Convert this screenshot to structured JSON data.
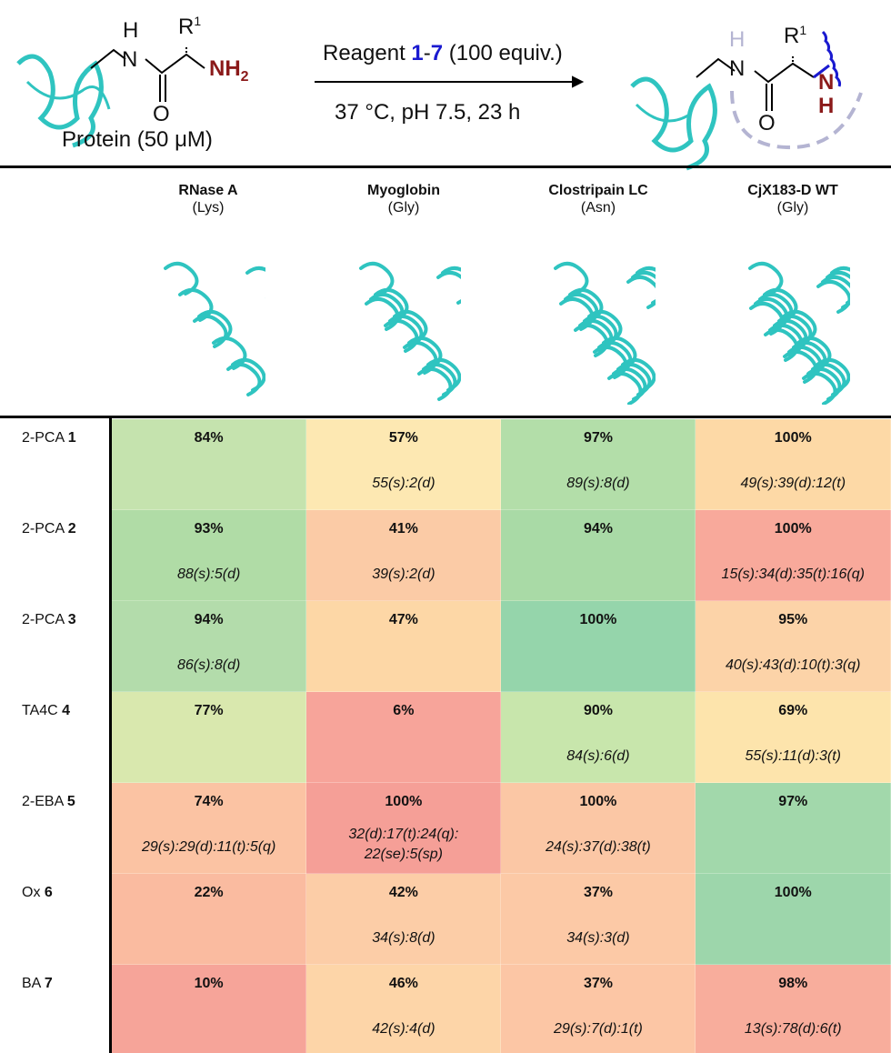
{
  "scheme": {
    "reactant_R": "R",
    "reactant_sup": "1",
    "reactant_H": "H",
    "reactant_N": "N",
    "reactant_O": "O",
    "amine": "NH",
    "amine_sub": "2",
    "protein_label": "Protein (50 μM)",
    "reagent_prefix": "Reagent ",
    "reagent_a": "1",
    "reagent_dash": "-",
    "reagent_b": "7",
    "reagent_suffix": " (100 equiv.)",
    "conditions": "37 °C, pH 7.5, 23 h",
    "product_NH_N": "N",
    "product_NH_H": "H",
    "colors": {
      "amine": "#8b1a1a",
      "reagent_number": "#1a1ad0",
      "protein": "#2fc4c0",
      "macrocycle_dash": "#b4b4d2",
      "reagent_bond": "#1a1ad0"
    }
  },
  "columns": [
    {
      "name": "RNase A",
      "residue": "(Lys)"
    },
    {
      "name": "Myoglobin",
      "residue": "(Gly)"
    },
    {
      "name": "Clostripain LC",
      "residue": "(Asn)"
    },
    {
      "name": "CjX183-D WT",
      "residue": "(Gly)"
    }
  ],
  "rows": [
    {
      "reagent": "2-PCA ",
      "num": "1",
      "cells": [
        {
          "pct": "84%",
          "detail": "",
          "color": "#c5e3ae"
        },
        {
          "pct": "57%",
          "detail": "55(s):2(d)",
          "color": "#fde8b2"
        },
        {
          "pct": "97%",
          "detail": "89(s):8(d)",
          "color": "#b3dea9"
        },
        {
          "pct": "100%",
          "detail": "49(s):39(d):12(t)",
          "color": "#fdd9a6"
        }
      ]
    },
    {
      "reagent": "2-PCA ",
      "num": "2",
      "cells": [
        {
          "pct": "93%",
          "detail": "88(s):5(d)",
          "color": "#b0dca6"
        },
        {
          "pct": "41%",
          "detail": "39(s):2(d)",
          "color": "#fbcba6"
        },
        {
          "pct": "94%",
          "detail": "",
          "color": "#a9daa6"
        },
        {
          "pct": "100%",
          "detail": "15(s):34(d):35(t):16(q)",
          "color": "#f8a99b"
        }
      ]
    },
    {
      "reagent": "2-PCA ",
      "num": "3",
      "cells": [
        {
          "pct": "94%",
          "detail": "86(s):8(d)",
          "color": "#b3dcab"
        },
        {
          "pct": "47%",
          "detail": "",
          "color": "#fdd7a6"
        },
        {
          "pct": "100%",
          "detail": "",
          "color": "#95d5ab"
        },
        {
          "pct": "95%",
          "detail": "40(s):43(d):10(t):3(q)",
          "color": "#fcd3a8"
        }
      ]
    },
    {
      "reagent": "TA4C ",
      "num": "4",
      "cells": [
        {
          "pct": "77%",
          "detail": "",
          "color": "#d9e8ae"
        },
        {
          "pct": "6%",
          "detail": "",
          "color": "#f7a49a"
        },
        {
          "pct": "90%",
          "detail": "84(s):6(d)",
          "color": "#c8e6ac"
        },
        {
          "pct": "69%",
          "detail": "55(s):11(d):3(t)",
          "color": "#fde4ac"
        }
      ]
    },
    {
      "reagent": "2-EBA ",
      "num": "5",
      "cells": [
        {
          "pct": "74%",
          "detail": "29(s):29(d):11(t):5(q)",
          "color": "#fbc3a3"
        },
        {
          "pct": "100%",
          "detail": "32(d):17(t):24(q): 22(se):5(sp)",
          "color": "#f59f97"
        },
        {
          "pct": "100%",
          "detail": "24(s):37(d):38(t)",
          "color": "#fbc7a5"
        },
        {
          "pct": "97%",
          "detail": "",
          "color": "#a2d8ab"
        }
      ]
    },
    {
      "reagent": "Ox ",
      "num": "6",
      "cells": [
        {
          "pct": "22%",
          "detail": "",
          "color": "#fabba0"
        },
        {
          "pct": "42%",
          "detail": "34(s):8(d)",
          "color": "#fccda7"
        },
        {
          "pct": "37%",
          "detail": "34(s):3(d)",
          "color": "#fcc9a6"
        },
        {
          "pct": "100%",
          "detail": "",
          "color": "#9dd6ab"
        }
      ]
    },
    {
      "reagent": "BA ",
      "num": "7",
      "cells": [
        {
          "pct": "10%",
          "detail": "",
          "color": "#f6a499"
        },
        {
          "pct": "46%",
          "detail": "42(s):4(d)",
          "color": "#fdd5a8"
        },
        {
          "pct": "37%",
          "detail": "29(s):7(d):1(t)",
          "color": "#fcc6a5"
        },
        {
          "pct": "98%",
          "detail": "13(s):78(d):6(t)",
          "color": "#f8ad9c"
        }
      ]
    }
  ]
}
